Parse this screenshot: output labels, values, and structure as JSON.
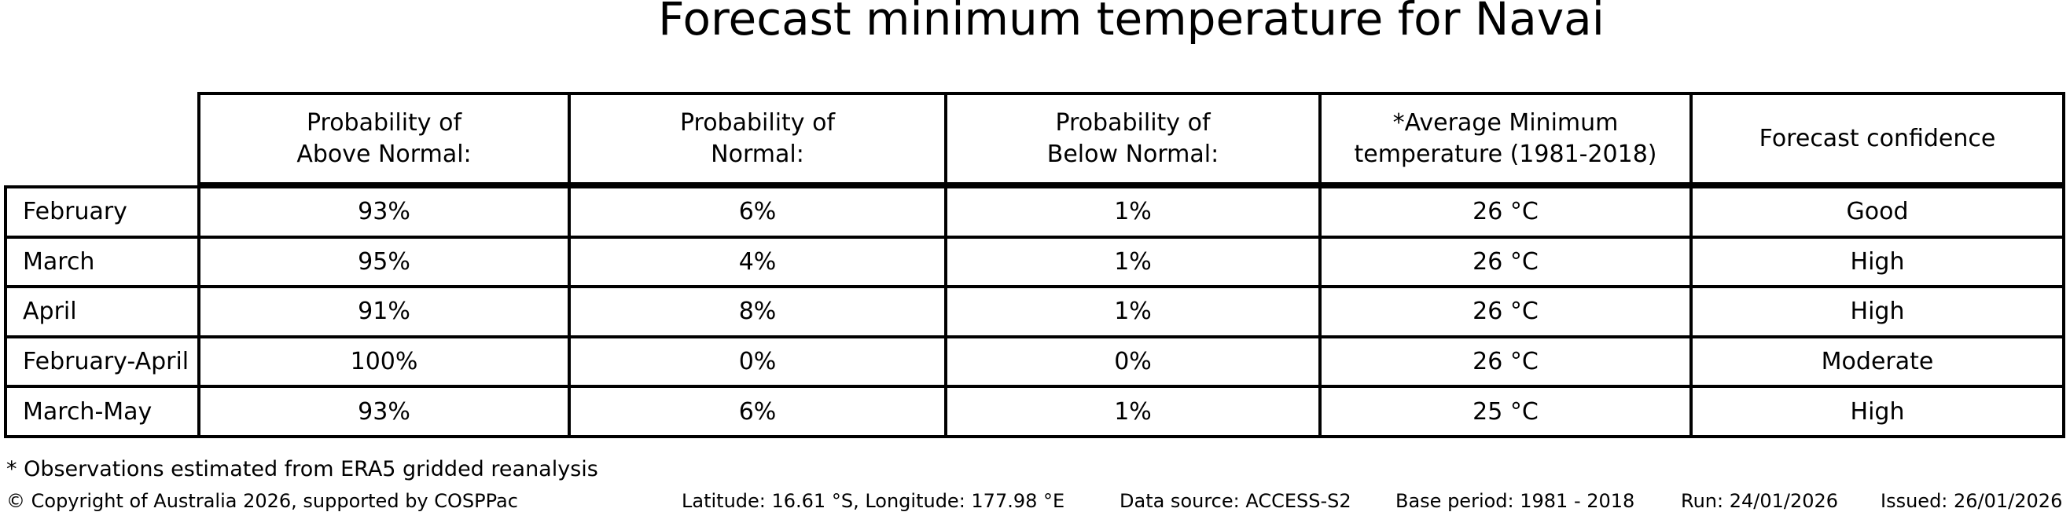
{
  "title": "Forecast minimum temperature for Navai",
  "chart_data": {
    "type": "table",
    "title": "Forecast minimum temperature for Navai",
    "columns": [
      "",
      "Probability of Above Normal:",
      "Probability of Normal:",
      "Probability of Below Normal:",
      "*Average Minimum temperature (1981-2018)",
      "Forecast confidence"
    ],
    "rows": [
      [
        "February",
        "93%",
        "6%",
        "1%",
        "26 °C",
        "Good"
      ],
      [
        "March",
        "95%",
        "4%",
        "1%",
        "26 °C",
        "High"
      ],
      [
        "April",
        "91%",
        "8%",
        "1%",
        "26 °C",
        "High"
      ],
      [
        "February-April",
        "100%",
        "0%",
        "0%",
        "26 °C",
        "Moderate"
      ],
      [
        "March-May",
        "93%",
        "6%",
        "1%",
        "25 °C",
        "High"
      ]
    ],
    "layout": {
      "grid": "full-borders-black-on-white",
      "header_top_left_cell": "empty-no-border"
    }
  },
  "header_lines": [
    {
      "line1": "Probability of",
      "line2": "Above Normal:"
    },
    {
      "line1": "Probability of",
      "line2": "Normal:"
    },
    {
      "line1": "Probability of",
      "line2": "Below Normal:"
    },
    {
      "line1": "*Average Minimum",
      "line2": "temperature (1981-2018)"
    },
    {
      "line1": "Forecast confidence",
      "line2": ""
    }
  ],
  "footnote": "* Observations estimated from ERA5 gridded reanalysis",
  "footer": {
    "copyright": "© Copyright of Australia 2026, supported by COSPPac",
    "location": "Latitude: 16.61 °S, Longitude: 177.98 °E",
    "data_source": "Data source: ACCESS-S2",
    "base_period": "Base period: 1981 - 2018",
    "run": "Run: 24/01/2026",
    "issued": "Issued: 26/01/2026"
  },
  "colors": {
    "text": "#000000",
    "background": "#ffffff",
    "border": "#000000"
  }
}
